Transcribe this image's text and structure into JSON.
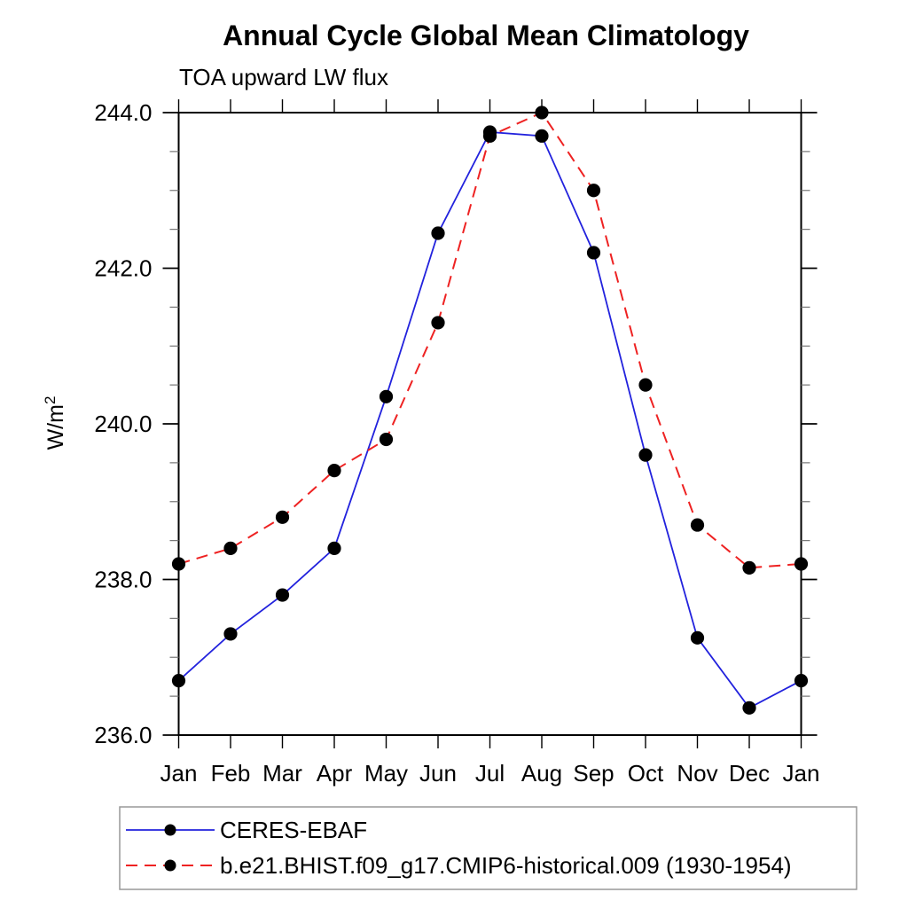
{
  "chart_data": {
    "type": "line",
    "title": "Annual Cycle Global Mean Climatology",
    "subtitle": "TOA upward LW flux",
    "ylabel": "W/m²",
    "ylabel_base": "W/m",
    "ylabel_sup": "2",
    "categories": [
      "Jan",
      "Feb",
      "Mar",
      "Apr",
      "May",
      "Jun",
      "Jul",
      "Aug",
      "Sep",
      "Oct",
      "Nov",
      "Dec",
      "Jan"
    ],
    "series": [
      {
        "name": "CERES-EBAF",
        "color": "#2222dd",
        "line_style": "solid",
        "marker": "filled-circle",
        "marker_color": "#000000",
        "values": [
          236.7,
          237.3,
          237.8,
          238.4,
          240.35,
          242.45,
          243.75,
          243.7,
          242.2,
          239.6,
          237.25,
          236.35,
          236.7
        ]
      },
      {
        "name": "b.e21.BHIST.f09_g17.CMIP6-historical.009 (1930-1954)",
        "color": "#ee2222",
        "line_style": "dashed",
        "marker": "filled-circle",
        "marker_color": "#000000",
        "values": [
          238.2,
          238.4,
          238.8,
          239.4,
          239.8,
          241.3,
          243.7,
          244.0,
          243.0,
          240.5,
          238.7,
          238.15,
          238.2
        ]
      }
    ],
    "ylim": [
      236.0,
      244.0
    ],
    "ytick_major": 2.0,
    "ytick_minor": 0.5,
    "ytick_labels": [
      "236.0",
      "238.0",
      "240.0",
      "242.0",
      "244.0"
    ],
    "grid": false,
    "frame": "box-with-outward-ticks",
    "legend_position": "bottom-left"
  }
}
